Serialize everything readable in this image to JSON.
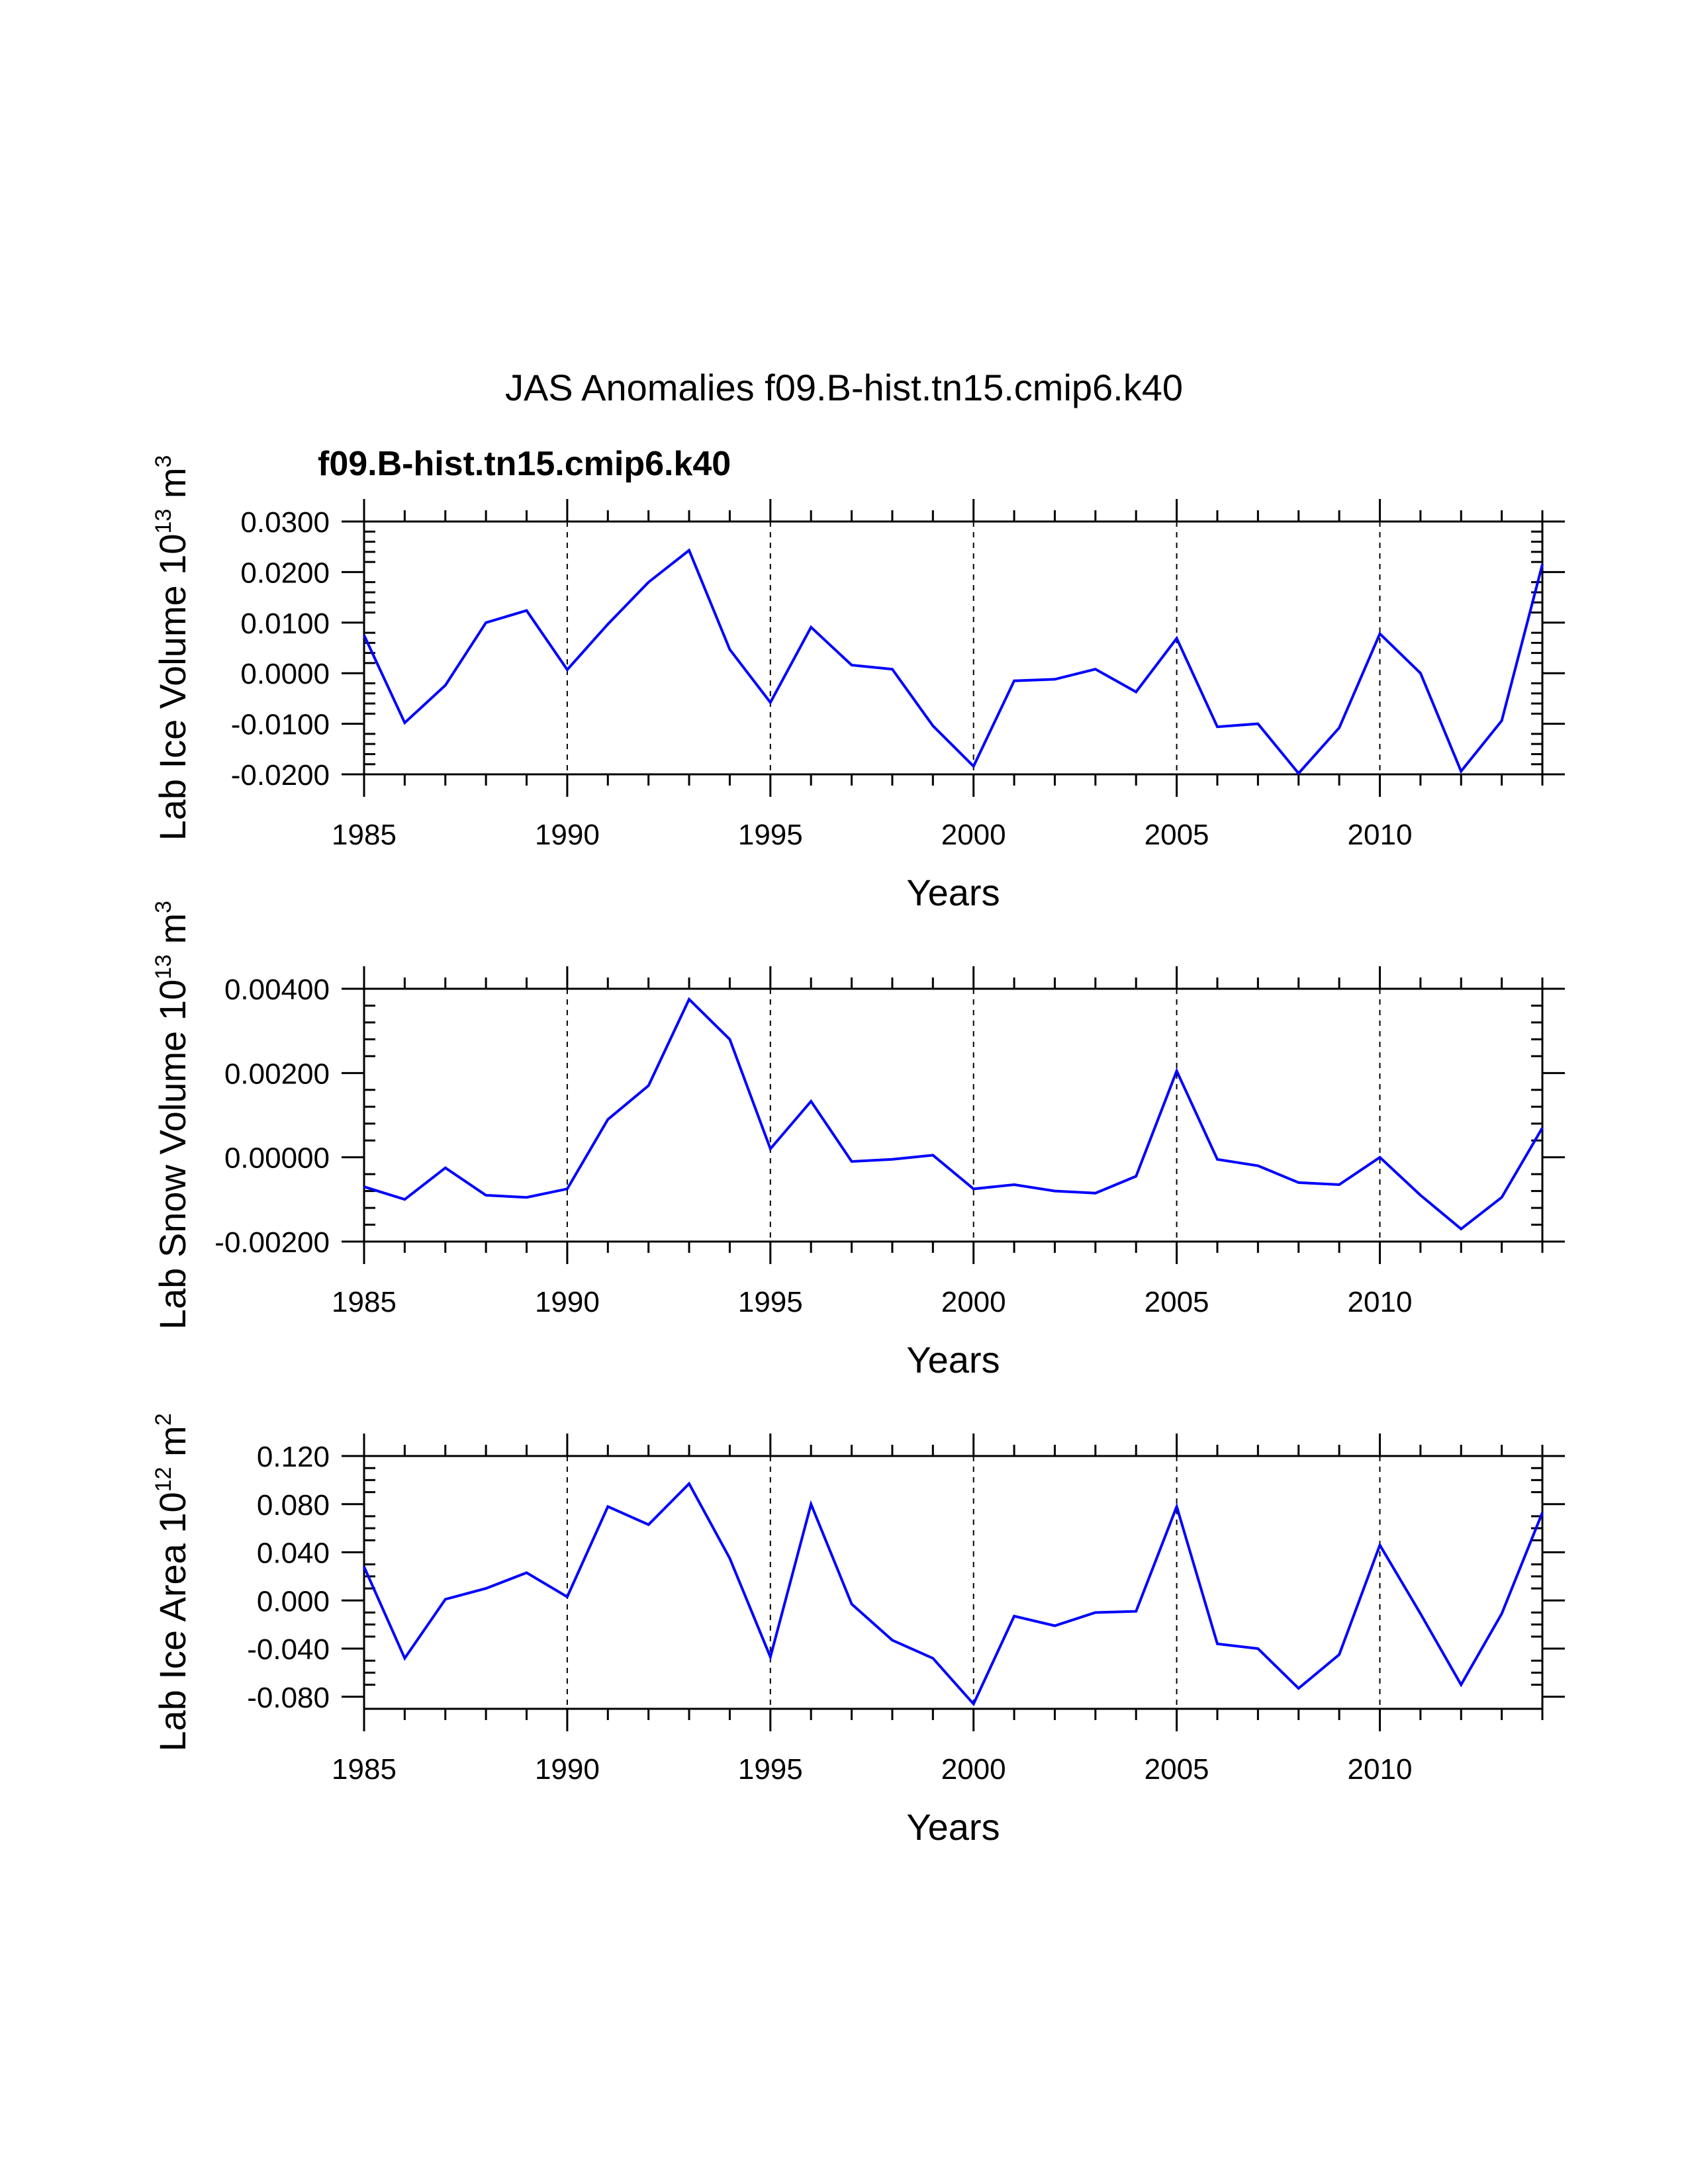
{
  "title": "JAS Anomalies f09.B-hist.tn15.cmip6.k40",
  "subtitle": "f09.B-hist.tn15.cmip6.k40",
  "colors": {
    "series": "#0000ff",
    "axis": "#000000",
    "grid": "#000000"
  },
  "chart_data": [
    {
      "type": "line",
      "title": "f09.B-hist.tn15.cmip6.k40",
      "xlabel": "Years",
      "ylabel": {
        "base": "Lab Ice Volume 10",
        "exp": "13",
        "unit": " m",
        "unit_exp": "3"
      },
      "xlim": [
        1985,
        2014
      ],
      "ylim": [
        -0.02,
        0.03
      ],
      "x_ticks": [
        1985,
        1990,
        1995,
        2000,
        2005,
        2010
      ],
      "x_tick_labels": [
        "1985",
        "1990",
        "1995",
        "2000",
        "2005",
        "2010"
      ],
      "y_ticks": [
        -0.02,
        -0.01,
        0.0,
        0.01,
        0.02,
        0.03
      ],
      "y_tick_labels": [
        "-0.0200",
        "-0.0100",
        "0.0000",
        "0.0100",
        "0.0200",
        "0.0300"
      ],
      "y_minor_step": 0.002,
      "grid_x": [
        1990,
        1995,
        2000,
        2005,
        2010
      ],
      "series": [
        {
          "name": "f09.B-hist.tn15.cmip6.k40",
          "x": [
            1985,
            1986,
            1987,
            1988,
            1989,
            1990,
            1991,
            1992,
            1993,
            1994,
            1995,
            1996,
            1997,
            1998,
            1999,
            2000,
            2001,
            2002,
            2003,
            2004,
            2005,
            2006,
            2007,
            2008,
            2009,
            2010,
            2011,
            2012,
            2013,
            2014
          ],
          "values": [
            0.0075,
            -0.0098,
            -0.0024,
            0.01,
            0.0124,
            0.0007,
            0.0097,
            0.018,
            0.0243,
            0.0047,
            -0.0058,
            0.0091,
            0.0016,
            0.0008,
            -0.0104,
            -0.0184,
            -0.0015,
            -0.0012,
            0.0008,
            -0.0037,
            0.0069,
            -0.0106,
            -0.01,
            -0.0198,
            -0.0108,
            0.0078,
            0.0,
            -0.0194,
            -0.0094,
            0.0215
          ]
        }
      ]
    },
    {
      "type": "line",
      "title": "",
      "xlabel": "Years",
      "ylabel": {
        "base": "Lab Snow Volume 10",
        "exp": "13",
        "unit": " m",
        "unit_exp": "3"
      },
      "xlim": [
        1985,
        2014
      ],
      "ylim": [
        -0.002,
        0.004
      ],
      "x_ticks": [
        1985,
        1990,
        1995,
        2000,
        2005,
        2010
      ],
      "x_tick_labels": [
        "1985",
        "1990",
        "1995",
        "2000",
        "2005",
        "2010"
      ],
      "y_ticks": [
        -0.002,
        0.0,
        0.002,
        0.004
      ],
      "y_tick_labels": [
        "-0.00200",
        "0.00000",
        "0.00200",
        "0.00400"
      ],
      "y_minor_step": 0.0004,
      "grid_x": [
        1990,
        1995,
        2000,
        2005,
        2010
      ],
      "series": [
        {
          "name": "f09.B-hist.tn15.cmip6.k40",
          "x": [
            1985,
            1986,
            1987,
            1988,
            1989,
            1990,
            1991,
            1992,
            1993,
            1994,
            1995,
            1996,
            1997,
            1998,
            1999,
            2000,
            2001,
            2002,
            2003,
            2004,
            2005,
            2006,
            2007,
            2008,
            2009,
            2010,
            2011,
            2012,
            2013,
            2014
          ],
          "values": [
            -0.0007,
            -0.001,
            -0.00025,
            -0.0009,
            -0.00095,
            -0.00075,
            0.0009,
            0.0017,
            0.00375,
            0.0028,
            0.0002,
            0.00133,
            -0.0001,
            -5e-05,
            5e-05,
            -0.00075,
            -0.00065,
            -0.0008,
            -0.00085,
            -0.00045,
            0.00205,
            -5e-05,
            -0.0002,
            -0.0006,
            -0.00065,
            0.0,
            -0.0009,
            -0.0017,
            -0.00095,
            0.0007
          ]
        }
      ]
    },
    {
      "type": "line",
      "title": "",
      "xlabel": "Years",
      "ylabel": {
        "base": "Lab Ice Area 10",
        "exp": "12",
        "unit": " m",
        "unit_exp": "2"
      },
      "xlim": [
        1985,
        2014
      ],
      "ylim": [
        -0.09,
        0.12
      ],
      "x_ticks": [
        1985,
        1990,
        1995,
        2000,
        2005,
        2010
      ],
      "x_tick_labels": [
        "1985",
        "1990",
        "1995",
        "2000",
        "2005",
        "2010"
      ],
      "y_ticks": [
        -0.08,
        -0.04,
        0.0,
        0.04,
        0.08,
        0.12
      ],
      "y_tick_labels": [
        "-0.080",
        "-0.040",
        "0.000",
        "0.040",
        "0.080",
        "0.120"
      ],
      "y_minor_step": 0.01,
      "grid_x": [
        1990,
        1995,
        2000,
        2005,
        2010
      ],
      "series": [
        {
          "name": "f09.B-hist.tn15.cmip6.k40",
          "x": [
            1985,
            1986,
            1987,
            1988,
            1989,
            1990,
            1991,
            1992,
            1993,
            1994,
            1995,
            1996,
            1997,
            1998,
            1999,
            2000,
            2001,
            2002,
            2003,
            2004,
            2005,
            2006,
            2007,
            2008,
            2009,
            2010,
            2011,
            2012,
            2013,
            2014
          ],
          "values": [
            0.028,
            -0.048,
            0.001,
            0.01,
            0.023,
            0.003,
            0.078,
            0.063,
            0.097,
            0.035,
            -0.047,
            0.08,
            -0.003,
            -0.033,
            -0.048,
            -0.086,
            -0.013,
            -0.021,
            -0.01,
            -0.009,
            0.078,
            -0.036,
            -0.04,
            -0.073,
            -0.045,
            0.046,
            -0.011,
            -0.07,
            -0.011,
            0.073
          ]
        }
      ]
    }
  ]
}
